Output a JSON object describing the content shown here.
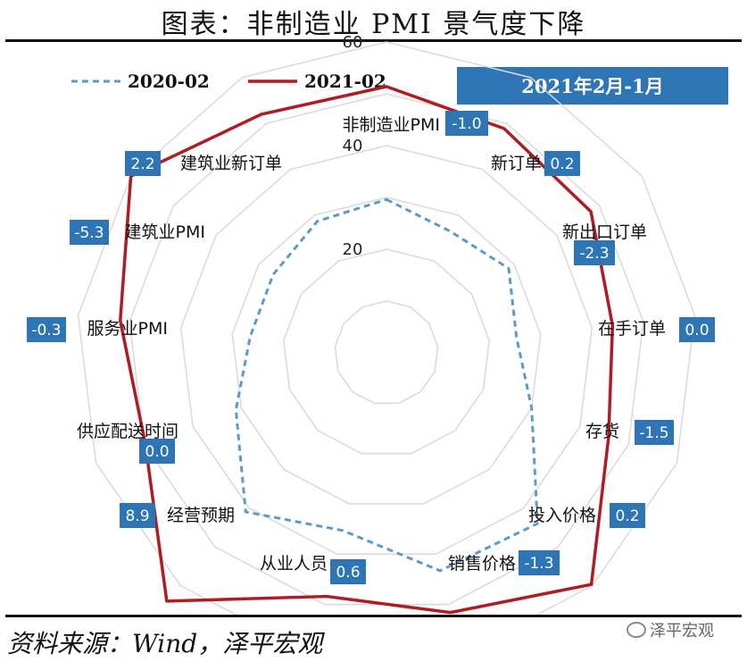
{
  "title": "图表：非制造业 PMI 景气度下降",
  "source": "资料来源：Wind，泽平宏观",
  "watermark": "泽平宏观",
  "colors": {
    "series1": "#5b9bc9",
    "series2": "#b01c22",
    "box": "#2e75b6",
    "grid": "#d9d9d9"
  },
  "chart_data": {
    "type": "radar",
    "title": "",
    "change_header": "2021年2月-1月",
    "rlim": [
      0,
      60
    ],
    "ticks": [
      20,
      40,
      60
    ],
    "grid": true,
    "legend_position": "top-left",
    "categories": [
      "非制造业PMI",
      "新订单",
      "新出口订单",
      "在手订单",
      "存货",
      "投入价格",
      "销售价格",
      "从业人员",
      "经营预期",
      "供应配送时间",
      "服务业PMI",
      "建筑业PMI",
      "建筑业新订单"
    ],
    "changes": [
      "-1.0",
      "0.2",
      "-2.3",
      "0.0",
      "-1.5",
      "0.2",
      "-1.3",
      "0.6",
      "8.9",
      "0.0",
      "-0.3",
      "-5.3",
      "2.2"
    ],
    "series": [
      {
        "name": "2020-02",
        "style": "dashed",
        "values": [
          29.6,
          26.5,
          28.7,
          25.3,
          30.0,
          44.0,
          43.3,
          35.3,
          41.0,
          31.1,
          26.5,
          26.6,
          28.7
        ]
      },
      {
        "name": "2021-02",
        "style": "solid",
        "values": [
          51.4,
          48.9,
          48.0,
          44.0,
          45.9,
          59.7,
          51.6,
          48.4,
          64.0,
          49.8,
          51.8,
          60.0,
          52.0
        ]
      }
    ]
  }
}
